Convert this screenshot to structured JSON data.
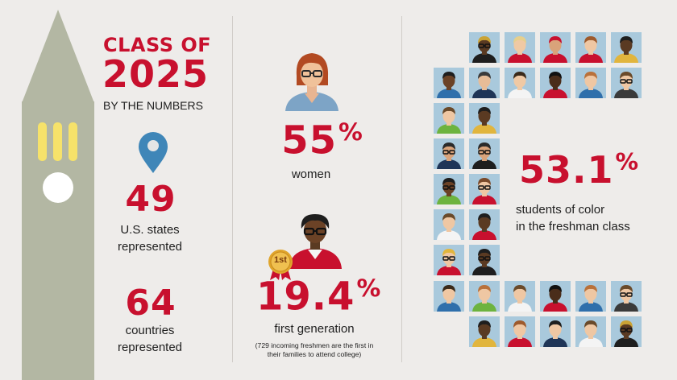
{
  "title": {
    "line1": "CLASS OF",
    "line2": "2025",
    "sub": "BY THE NUMBERS"
  },
  "stats": {
    "states": {
      "value": "49",
      "label1": "U.S. states",
      "label2": "represented"
    },
    "countries": {
      "value": "64",
      "label1": "countries",
      "label2": "represented"
    },
    "women": {
      "value": "55",
      "suffix": "%",
      "label": "women"
    },
    "firstgen": {
      "badge": "1st",
      "value": "19.4",
      "suffix": "%",
      "label": "first generation",
      "note1": "(729 incoming freshmen are the first in",
      "note2": "their families to attend college)"
    },
    "color": {
      "value": "53.1",
      "suffix": "%",
      "label1": "students of color",
      "label2": "in the freshman class"
    }
  },
  "colors": {
    "accent": "#c8102e",
    "tower": "#b3b7a3",
    "tile": "#a9c9dc"
  },
  "icons": {
    "location": "map-pin-icon",
    "badge": "award-ribbon-icon"
  },
  "avatars": [
    {
      "skin": "#5a3a22",
      "hair": "#caa335",
      "shirt": "#1e1e1e",
      "glasses": true
    },
    {
      "skin": "#f0c9a4",
      "hair": "#e6cf8c",
      "shirt": "#c8102e",
      "glasses": false
    },
    {
      "skin": "#d9a37a",
      "hair": "#c8102e",
      "shirt": "#c8102e",
      "glasses": false
    },
    {
      "skin": "#efc7a3",
      "hair": "#9e5a2c",
      "shirt": "#c8102e",
      "glasses": false
    },
    {
      "skin": "#5a3a22",
      "hair": "#1e1e1e",
      "shirt": "#e1b53d",
      "glasses": false
    },
    {
      "skin": "#6b4226",
      "hair": "#1e1e1e",
      "shirt": "#2f6fab",
      "glasses": false
    },
    {
      "skin": "#e7bc97",
      "hair": "#3a3a3a",
      "shirt": "#1f3557",
      "glasses": false
    },
    {
      "skin": "#f0c9a4",
      "hair": "#3a2a1a",
      "shirt": "#f4f4f4",
      "glasses": false
    },
    {
      "skin": "#4a2d1a",
      "hair": "#111111",
      "shirt": "#c8102e",
      "glasses": false
    },
    {
      "skin": "#efc7a3",
      "hair": "#b9713a",
      "shirt": "#2f6fab",
      "glasses": false
    },
    {
      "skin": "#efc7a3",
      "hair": "#6a4a2a",
      "shirt": "#3a3a3a",
      "glasses": true
    },
    {
      "skin": "#efc7a3",
      "hair": "#6a4a2a",
      "shirt": "#6db33f",
      "glasses": false
    },
    {
      "skin": "#5a3a22",
      "hair": "#1e1e1e",
      "shirt": "#e1b53d",
      "glasses": false
    },
    {
      "skin": "#d9a37a",
      "hair": "#2a2a2a",
      "shirt": "#1f3557",
      "glasses": true
    },
    {
      "skin": "#d9a37a",
      "hair": "#2a2a2a",
      "shirt": "#1e1e1e",
      "glasses": true
    },
    {
      "skin": "#6b4226",
      "hair": "#1e1e1e",
      "shirt": "#6db33f",
      "glasses": true
    },
    {
      "skin": "#efc7a3",
      "hair": "#7a4a2a",
      "shirt": "#c8102e",
      "glasses": true
    },
    {
      "skin": "#efc7a3",
      "hair": "#6a4a2a",
      "shirt": "#f4f4f4",
      "glasses": false
    },
    {
      "skin": "#5a3a22",
      "hair": "#1e1e1e",
      "shirt": "#c8102e",
      "glasses": false
    },
    {
      "skin": "#efc7a3",
      "hair": "#e1b53d",
      "shirt": "#c8102e",
      "glasses": true
    },
    {
      "skin": "#5a3a22",
      "hair": "#1e1e1e",
      "shirt": "#1e1e1e",
      "glasses": true
    },
    {
      "skin": "#efc7a3",
      "hair": "#3a2a1a",
      "shirt": "#2f6fab",
      "glasses": false
    },
    {
      "skin": "#efc7a3",
      "hair": "#b9713a",
      "shirt": "#6db33f",
      "glasses": false
    },
    {
      "skin": "#efc7a3",
      "hair": "#6a4a2a",
      "shirt": "#f4f4f4",
      "glasses": false
    },
    {
      "skin": "#4a2d1a",
      "hair": "#111111",
      "shirt": "#c8102e",
      "glasses": false
    },
    {
      "skin": "#efc7a3",
      "hair": "#b9713a",
      "shirt": "#2f6fab",
      "glasses": false
    },
    {
      "skin": "#efc7a3",
      "hair": "#6a4a2a",
      "shirt": "#3a3a3a",
      "glasses": true
    },
    {
      "skin": "#5a3a22",
      "hair": "#1e1e1e",
      "shirt": "#e1b53d",
      "glasses": false
    },
    {
      "skin": "#efc7a3",
      "hair": "#9e5a2c",
      "shirt": "#c8102e",
      "glasses": false
    },
    {
      "skin": "#efc7a3",
      "hair": "#1e1e1e",
      "shirt": "#1f3557",
      "glasses": false
    },
    {
      "skin": "#efc7a3",
      "hair": "#6a4a2a",
      "shirt": "#f4f4f4",
      "glasses": false
    }
  ]
}
